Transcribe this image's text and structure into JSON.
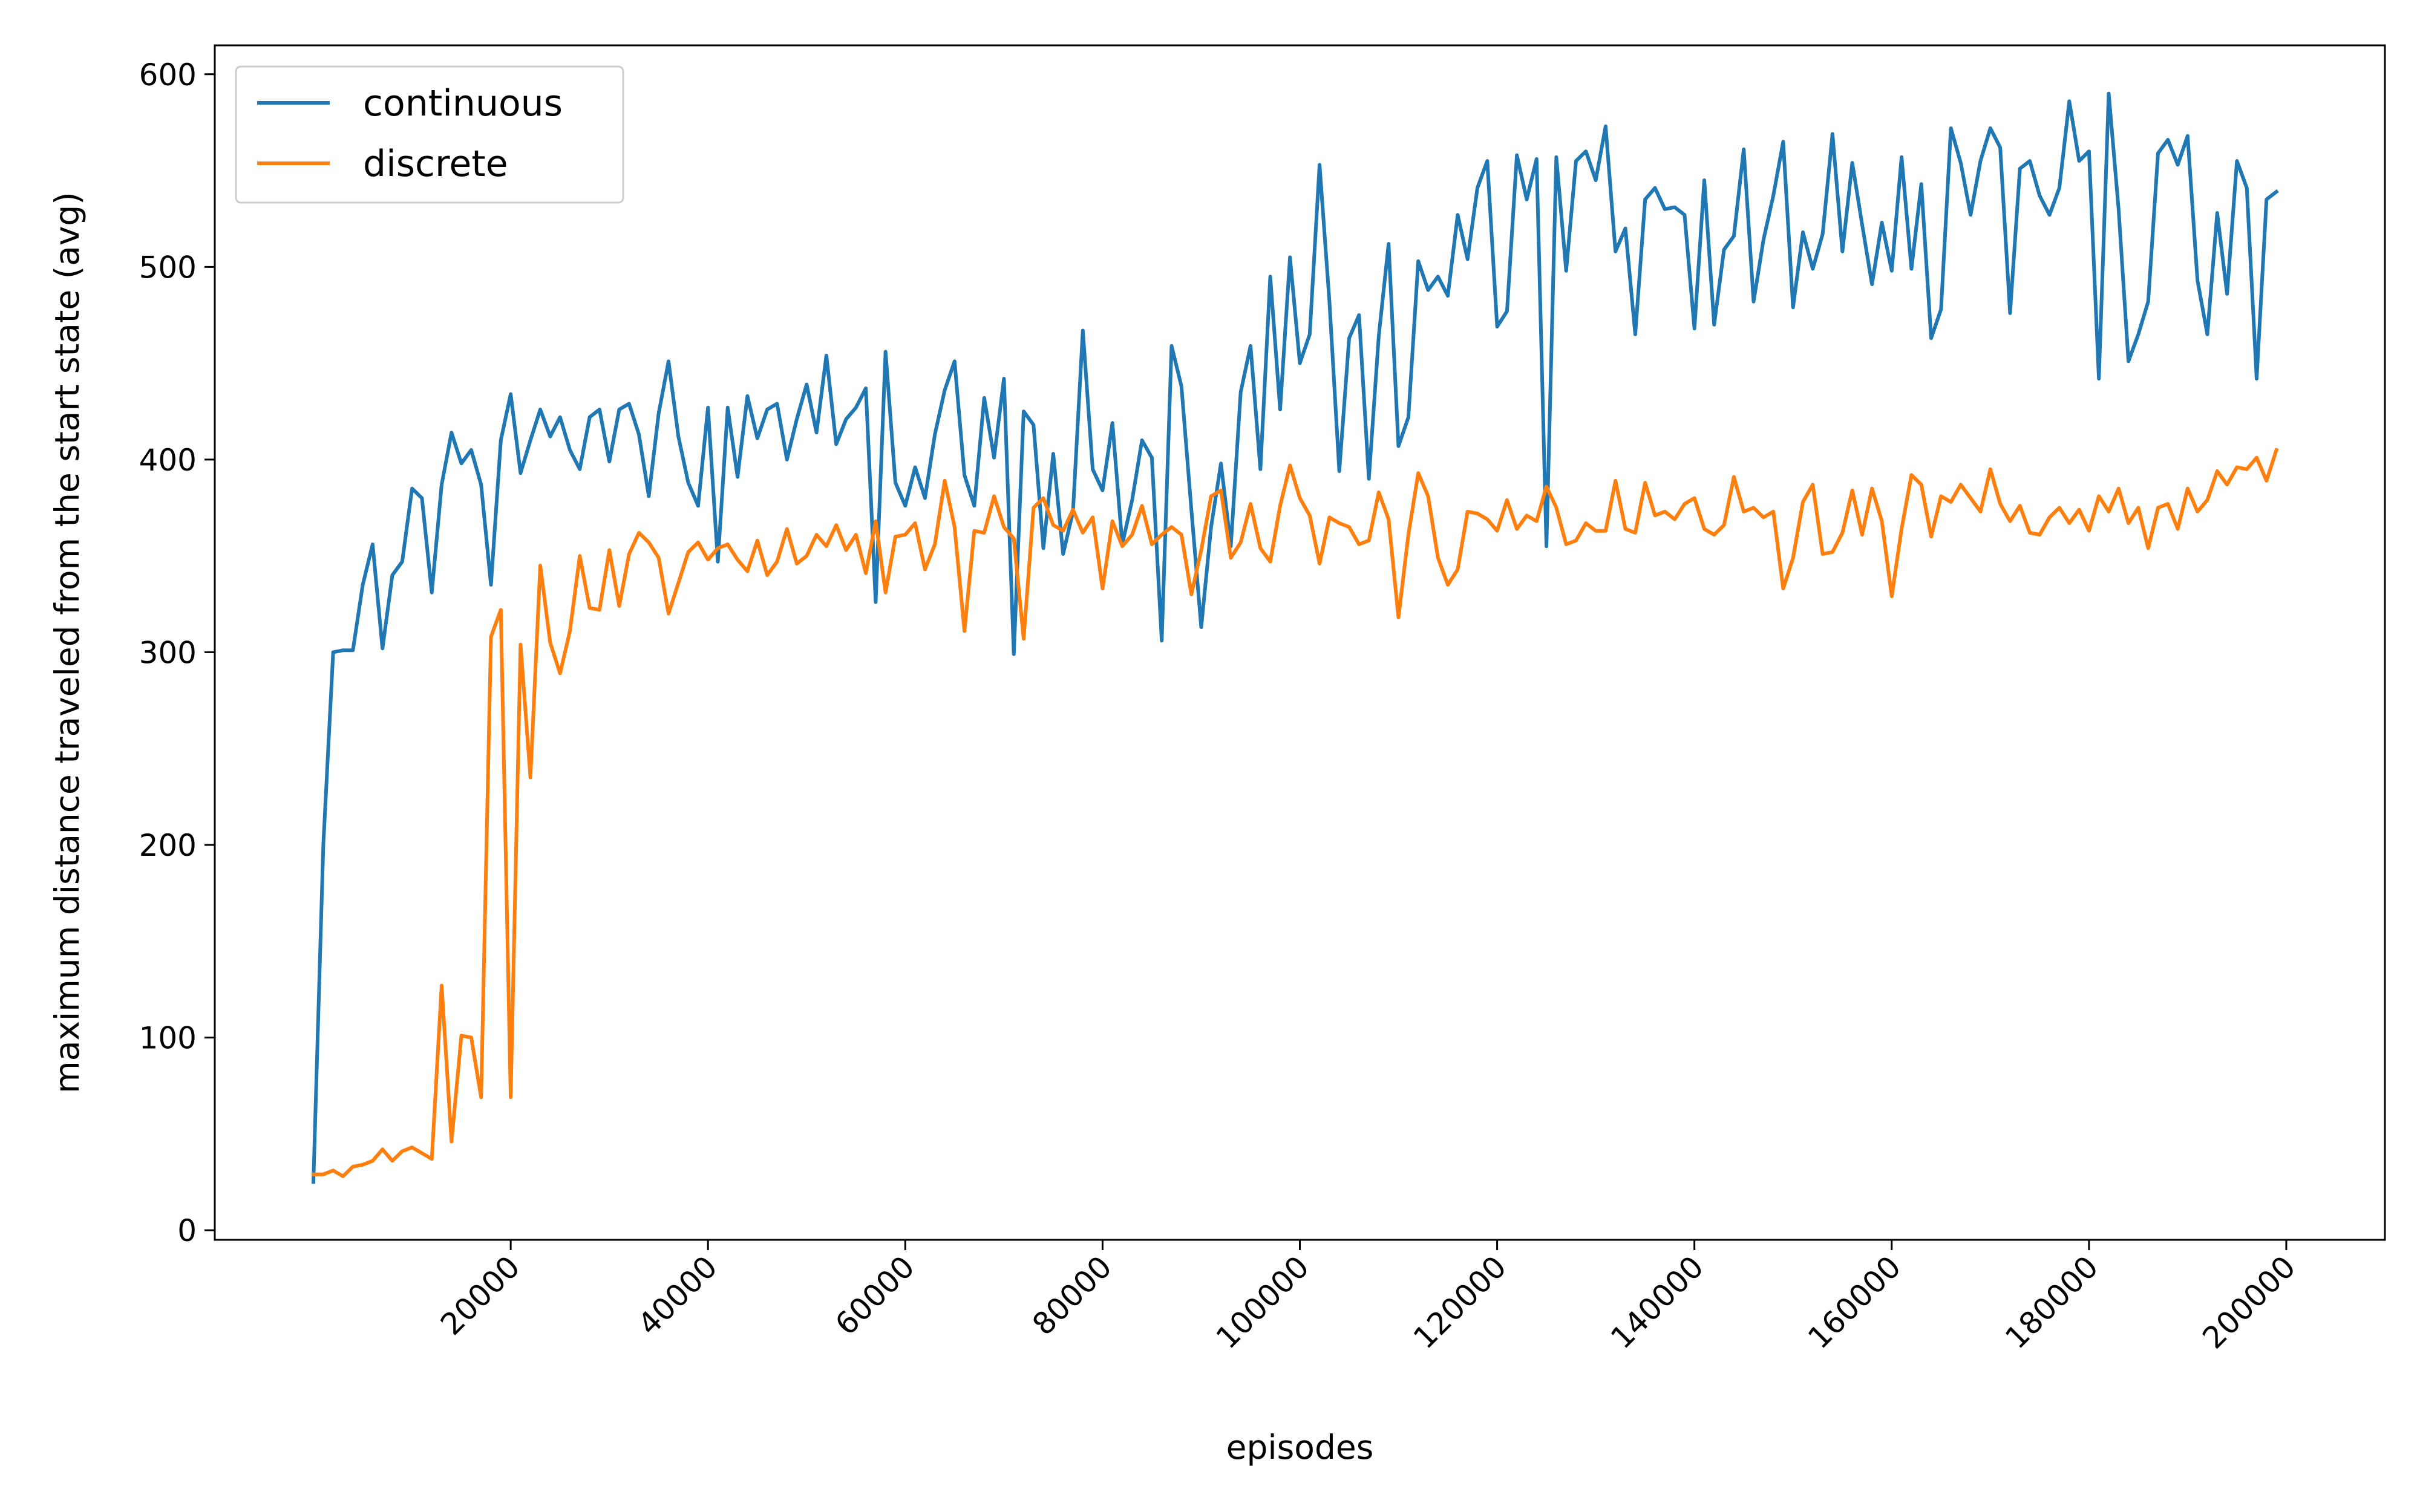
{
  "chart_data": {
    "type": "line",
    "xlabel": "episodes",
    "ylabel": "maximum distance traveled from the start state (avg)",
    "xlim": [
      -10000,
      210000
    ],
    "ylim": [
      -5,
      615
    ],
    "xticks": [
      20000,
      40000,
      60000,
      80000,
      100000,
      120000,
      140000,
      160000,
      180000,
      200000
    ],
    "yticks": [
      0,
      100,
      200,
      300,
      400,
      500,
      600
    ],
    "legend_position": "top-left",
    "grid": false,
    "x_step": 1000,
    "series": [
      {
        "name": "continuous",
        "color": "#1f77b4",
        "x_start": 0,
        "values": [
          25,
          200,
          300,
          301,
          301,
          335,
          356,
          302,
          340,
          347,
          385,
          380,
          331,
          387,
          414,
          398,
          405,
          387,
          335,
          410,
          434,
          393,
          410,
          426,
          412,
          422,
          405,
          395,
          422,
          426,
          399,
          426,
          429,
          413,
          381,
          424,
          451,
          412,
          388,
          376,
          427,
          347,
          427,
          391,
          433,
          411,
          426,
          429,
          400,
          421,
          439,
          414,
          454,
          408,
          421,
          427,
          437,
          326,
          456,
          388,
          376,
          396,
          380,
          413,
          436,
          451,
          392,
          376,
          432,
          401,
          442,
          299,
          425,
          418,
          354,
          403,
          351,
          373,
          467,
          395,
          384,
          419,
          356,
          379,
          410,
          401,
          306,
          459,
          438,
          374,
          313,
          365,
          398,
          355,
          435,
          459,
          395,
          495,
          426,
          505,
          450,
          465,
          553,
          482,
          394,
          463,
          475,
          390,
          464,
          512,
          407,
          422,
          503,
          488,
          495,
          485,
          527,
          504,
          541,
          555,
          469,
          477,
          558,
          535,
          556,
          355,
          557,
          498,
          555,
          560,
          545,
          573,
          508,
          520,
          465,
          535,
          541,
          530,
          531,
          527,
          468,
          545,
          470,
          509,
          516,
          561,
          482,
          514,
          537,
          565,
          479,
          518,
          499,
          517,
          569,
          508,
          554,
          522,
          491,
          523,
          498,
          557,
          499,
          543,
          463,
          478,
          572,
          554,
          527,
          555,
          572,
          562,
          476,
          551,
          555,
          537,
          527,
          541,
          586,
          555,
          560,
          442,
          590,
          530,
          451,
          465,
          482,
          559,
          566,
          553,
          568,
          493,
          465,
          528,
          486,
          555,
          541,
          442,
          535,
          539
        ]
      },
      {
        "name": "discrete",
        "color": "#ff7f0e",
        "x_start": 0,
        "values": [
          29,
          29,
          31,
          28,
          33,
          34,
          36,
          42,
          36,
          41,
          43,
          40,
          37,
          127,
          46,
          101,
          100,
          69,
          308,
          322,
          69,
          304,
          235,
          345,
          305,
          289,
          311,
          350,
          323,
          322,
          353,
          324,
          351,
          362,
          357,
          349,
          320,
          336,
          352,
          357,
          348,
          354,
          356,
          348,
          342,
          358,
          340,
          347,
          364,
          346,
          350,
          361,
          355,
          366,
          353,
          361,
          341,
          368,
          331,
          360,
          361,
          367,
          343,
          356,
          389,
          365,
          311,
          363,
          362,
          381,
          365,
          359,
          307,
          375,
          380,
          366,
          363,
          374,
          362,
          370,
          333,
          368,
          355,
          361,
          376,
          356,
          361,
          365,
          361,
          330,
          353,
          381,
          384,
          349,
          357,
          377,
          354,
          347,
          376,
          397,
          380,
          371,
          346,
          370,
          367,
          365,
          356,
          358,
          383,
          369,
          318,
          361,
          393,
          381,
          349,
          335,
          343,
          373,
          372,
          369,
          363,
          379,
          364,
          371,
          368,
          386,
          375,
          356,
          358,
          367,
          363,
          363,
          389,
          364,
          362,
          388,
          371,
          373,
          369,
          377,
          380,
          364,
          361,
          366,
          391,
          373,
          375,
          370,
          373,
          333,
          349,
          378,
          387,
          351,
          352,
          362,
          384,
          361,
          385,
          368,
          329,
          364,
          392,
          387,
          360,
          381,
          378,
          387,
          380,
          373,
          395,
          377,
          368,
          376,
          362,
          361,
          370,
          375,
          367,
          374,
          363,
          381,
          373,
          385,
          367,
          375,
          354,
          375,
          377,
          364,
          385,
          373,
          379,
          394,
          387,
          396,
          395,
          401,
          389,
          405
        ]
      }
    ]
  }
}
